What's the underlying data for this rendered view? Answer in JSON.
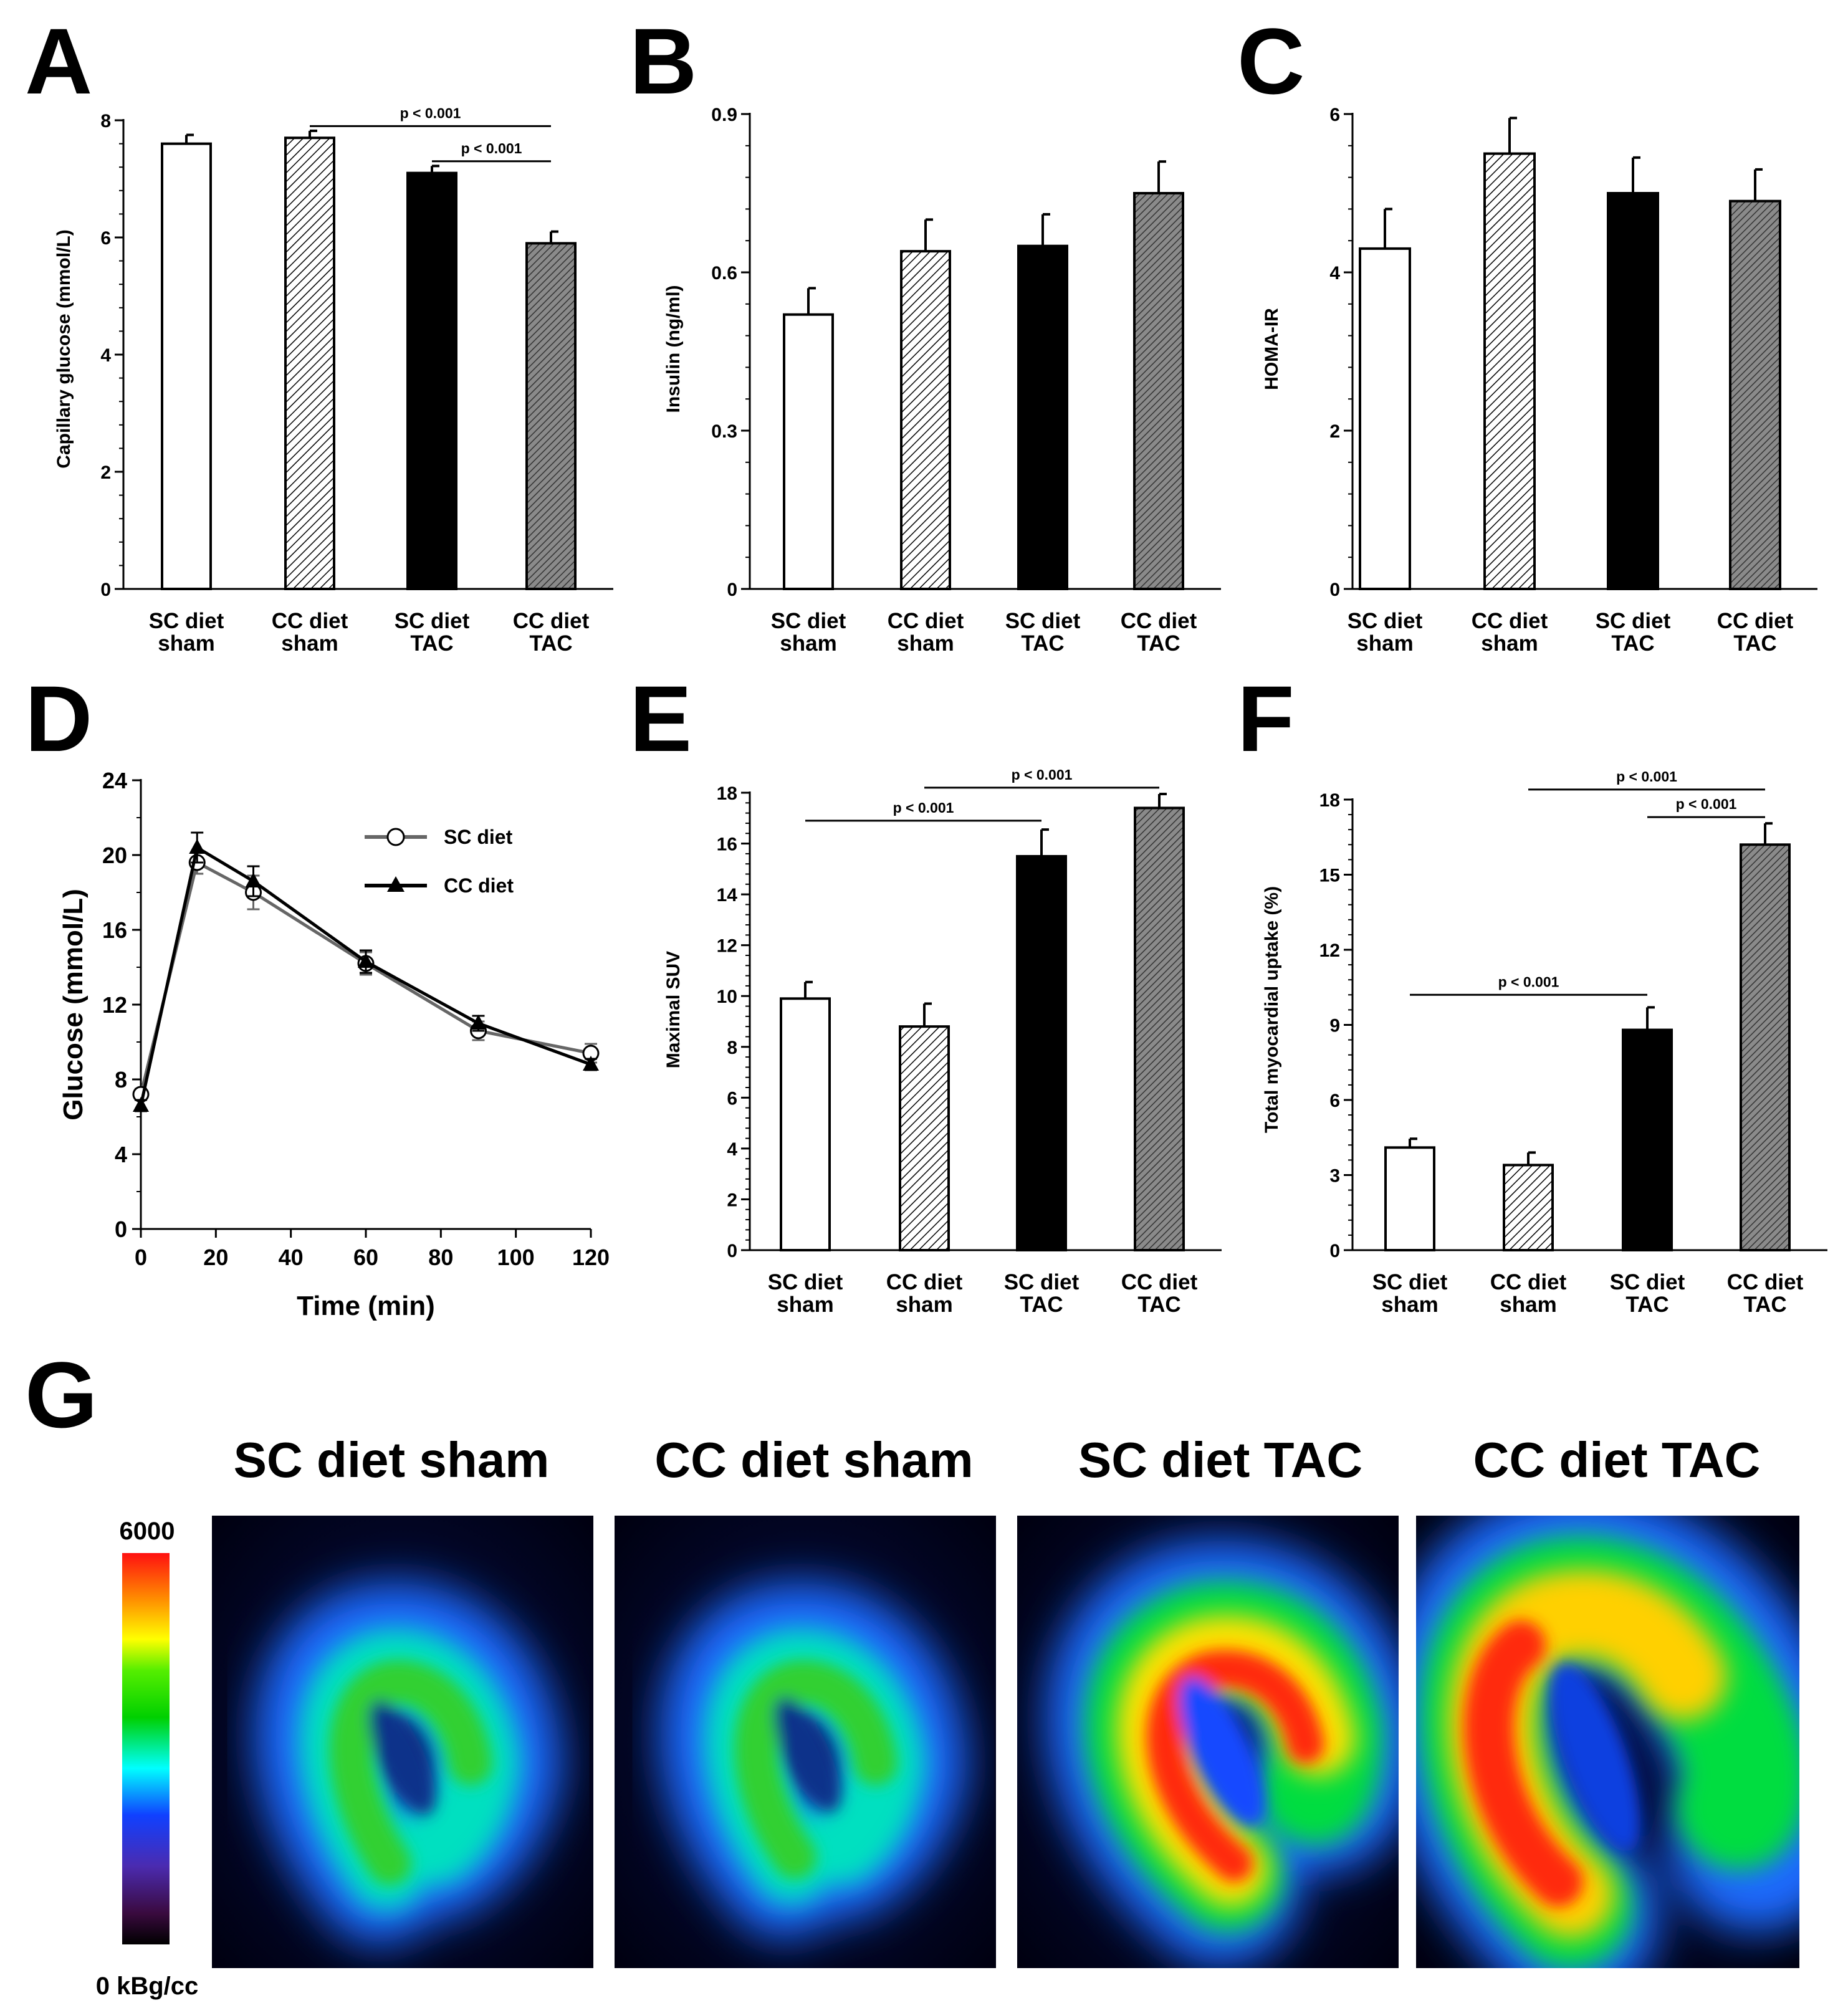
{
  "colors": {
    "bar_sc_sham": "#ffffff",
    "bar_tac_sc": "#000000",
    "bar_cc_tac": "#777777",
    "line_sc": "#666666",
    "line_cc": "#000000"
  },
  "chart_data": [
    {
      "panel": "A",
      "type": "bar",
      "ylabel": "Capillary glucose (mmol/L)",
      "ylim": [
        0,
        8
      ],
      "yticks": [
        "0",
        "2",
        "4",
        "6",
        "8"
      ],
      "categories": [
        [
          "SC diet",
          "sham"
        ],
        [
          "CC diet",
          "sham"
        ],
        [
          "SC diet",
          "TAC"
        ],
        [
          "CC diet",
          "TAC"
        ]
      ],
      "values": [
        7.6,
        7.7,
        7.1,
        5.9
      ],
      "errors": [
        0.15,
        0.12,
        0.12,
        0.2
      ],
      "fills": [
        "white",
        "hatch-light",
        "black",
        "hatch-dark"
      ],
      "annotations": [
        {
          "text": "p < 0.001",
          "from": 1,
          "to": 3,
          "y": 7.9
        },
        {
          "text": "p < 0.001",
          "from": 2,
          "to": 3,
          "y": 7.3
        }
      ]
    },
    {
      "panel": "B",
      "type": "bar",
      "ylabel": "Insulin (ng/ml)",
      "ylim": [
        0,
        0.9
      ],
      "yticks": [
        "0",
        "0.3",
        "0.6",
        "0.9"
      ],
      "categories": [
        [
          "SC diet",
          "sham"
        ],
        [
          "CC diet",
          "sham"
        ],
        [
          "SC diet",
          "TAC"
        ],
        [
          "CC diet",
          "TAC"
        ]
      ],
      "values": [
        0.52,
        0.64,
        0.65,
        0.75
      ],
      "errors": [
        0.05,
        0.06,
        0.06,
        0.06
      ],
      "fills": [
        "white",
        "hatch-light",
        "black",
        "hatch-dark"
      ],
      "annotations": []
    },
    {
      "panel": "C",
      "type": "bar",
      "ylabel": "HOMA-IR",
      "ylim": [
        0,
        6
      ],
      "yticks": [
        "0",
        "2",
        "4",
        "6"
      ],
      "categories": [
        [
          "SC diet",
          "sham"
        ],
        [
          "CC diet",
          "sham"
        ],
        [
          "SC diet",
          "TAC"
        ],
        [
          "CC diet",
          "TAC"
        ]
      ],
      "values": [
        4.3,
        5.5,
        5.0,
        4.9
      ],
      "errors": [
        0.5,
        0.45,
        0.45,
        0.4
      ],
      "fills": [
        "white",
        "hatch-light",
        "black",
        "hatch-dark"
      ],
      "annotations": []
    },
    {
      "panel": "D",
      "type": "line",
      "xlabel": "Time (min)",
      "ylabel": "Glucose (mmol/L)",
      "xlim": [
        0,
        120
      ],
      "ylim": [
        0,
        24
      ],
      "xticks": [
        "0",
        "20",
        "40",
        "60",
        "80",
        "100",
        "120"
      ],
      "yticks": [
        "0",
        "4",
        "8",
        "12",
        "16",
        "20",
        "24"
      ],
      "x": [
        0,
        15,
        30,
        60,
        90,
        120
      ],
      "series": [
        {
          "name": "SC diet",
          "values": [
            7.2,
            19.6,
            18.0,
            14.2,
            10.6,
            9.4
          ],
          "errors": [
            0.3,
            0.6,
            0.9,
            0.6,
            0.5,
            0.5
          ],
          "marker": "circle"
        },
        {
          "name": "CC diet",
          "values": [
            6.6,
            20.4,
            18.6,
            14.3,
            11.0,
            8.8
          ],
          "errors": [
            0.3,
            0.8,
            0.8,
            0.6,
            0.4,
            0.3
          ],
          "marker": "triangle"
        }
      ]
    },
    {
      "panel": "E",
      "type": "bar",
      "ylabel": "Maximal SUV",
      "ylim": [
        0,
        18
      ],
      "yticks": [
        "0",
        "2",
        "4",
        "6",
        "8",
        "10",
        "12",
        "14",
        "16",
        "18"
      ],
      "categories": [
        [
          "SC diet",
          "sham"
        ],
        [
          "CC diet",
          "sham"
        ],
        [
          "SC diet",
          "TAC"
        ],
        [
          "CC diet",
          "TAC"
        ]
      ],
      "values": [
        9.9,
        8.8,
        15.5,
        17.4
      ],
      "errors": [
        0.65,
        0.9,
        1.05,
        0.55
      ],
      "fills": [
        "white",
        "hatch-light",
        "black",
        "hatch-dark"
      ],
      "annotations": [
        {
          "text": "p < 0.001",
          "from": 1,
          "to": 3,
          "y": 18.2
        },
        {
          "text": "p < 0.001",
          "from": 0,
          "to": 2,
          "y": 16.9
        }
      ]
    },
    {
      "panel": "F",
      "type": "bar",
      "ylabel": "Total myocardial uptake (%)",
      "ylim": [
        0,
        18
      ],
      "yticks": [
        "0",
        "3",
        "6",
        "9",
        "12",
        "15",
        "18"
      ],
      "categories": [
        [
          "SC diet",
          "sham"
        ],
        [
          "CC diet",
          "sham"
        ],
        [
          "SC diet",
          "TAC"
        ],
        [
          "CC diet",
          "TAC"
        ]
      ],
      "values": [
        4.1,
        3.4,
        8.8,
        16.2
      ],
      "errors": [
        0.35,
        0.5,
        0.9,
        0.85
      ],
      "fills": [
        "white",
        "hatch-light",
        "black",
        "hatch-dark"
      ],
      "annotations": [
        {
          "text": "p < 0.001",
          "from": 1,
          "to": 3,
          "y": 18.4
        },
        {
          "text": "p < 0.001",
          "from": 2,
          "to": 3,
          "y": 17.3
        },
        {
          "text": "p < 0.001",
          "from": 0,
          "to": 2,
          "y": 10.2
        }
      ]
    }
  ],
  "panel_g": {
    "letter": "G",
    "titles": [
      "SC diet sham",
      "CC diet sham",
      "SC diet TAC",
      "CC diet TAC"
    ],
    "scale_max": "6000",
    "scale_min": "0 kBg/cc"
  }
}
